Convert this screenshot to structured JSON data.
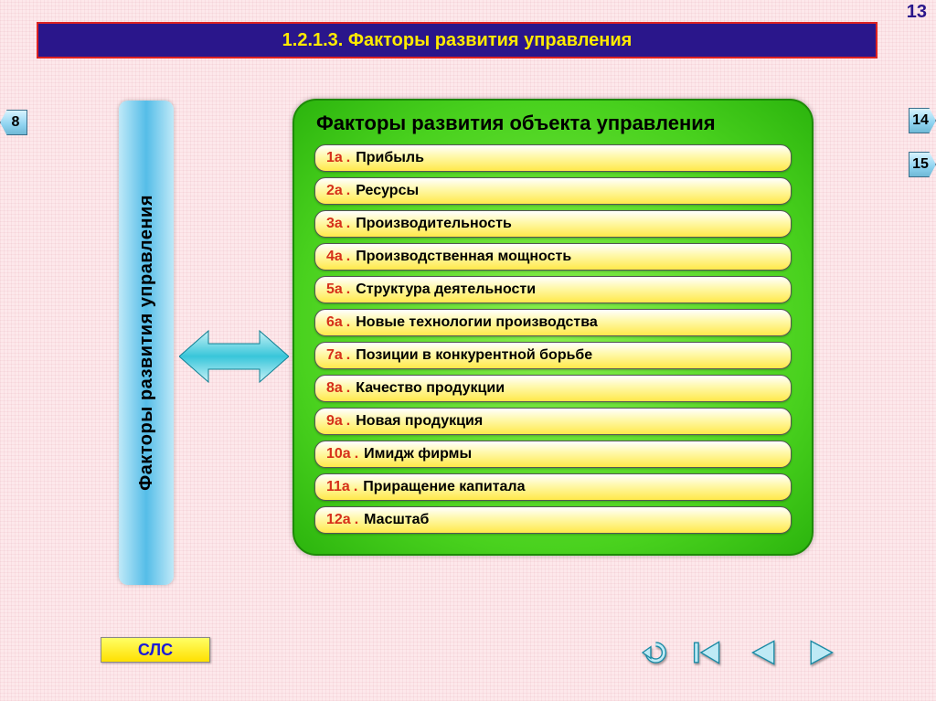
{
  "page_number": "13",
  "title": "1.2.1.3. Факторы развития управления",
  "colors": {
    "background": "#fde8eb",
    "title_bg": "#2a168b",
    "title_border": "#d22222",
    "title_text": "#ffea00",
    "nav_pill_grad_top": "#d8f3ff",
    "nav_pill_grad_bot": "#6fb9d6",
    "vbar_grad_edge": "#bfe9f8",
    "vbar_grad_mid": "#55bde8",
    "arrow_fill_light": "#8fe0e8",
    "arrow_fill_dark": "#1fb6cc",
    "panel_grad_inner": "#8af04e",
    "panel_grad_outer": "#2bb40d",
    "row_grad_top": "#ffffff",
    "row_grad_bot": "#ffe94a",
    "row_num_color": "#d6301a",
    "sls_bg": "#ffe000",
    "sls_text": "#1b1bd6",
    "nav_icon_fill": "#beeaf5",
    "nav_icon_stroke": "#1a8aa5"
  },
  "nav": {
    "left": {
      "label": "8"
    },
    "right_top": {
      "label": "14"
    },
    "right_bot": {
      "label": "15"
    }
  },
  "vbar_label": "Факторы развития управления",
  "panel": {
    "title": "Факторы развития объекта управления",
    "items": [
      {
        "num": "1а",
        "text": "Прибыль"
      },
      {
        "num": "2а",
        "text": "Ресурсы"
      },
      {
        "num": "3а",
        "text": "Производительность"
      },
      {
        "num": "4а",
        "text": "Производственная мощность"
      },
      {
        "num": "5а",
        "text": "Структура деятельности"
      },
      {
        "num": "6а",
        "text": "Новые технологии производства"
      },
      {
        "num": "7а",
        "text": "Позиции в конкурентной борьбе"
      },
      {
        "num": "8а",
        "text": "Качество продукции"
      },
      {
        "num": "9а",
        "text": "Новая продукция"
      },
      {
        "num": "10а",
        "text": "Имидж фирмы"
      },
      {
        "num": "11а",
        "text": "Приращение капитала"
      },
      {
        "num": "12а",
        "text": "Масштаб"
      }
    ]
  },
  "bottom": {
    "sls": "СЛС"
  }
}
